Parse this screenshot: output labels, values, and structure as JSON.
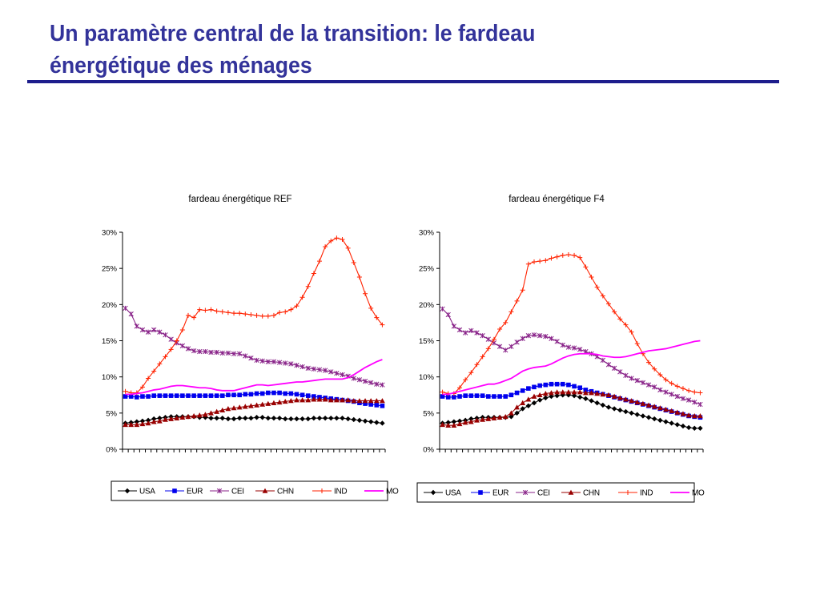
{
  "slide": {
    "title_line1": "Un paramètre central de la transition: le fardeau",
    "title_line2": "énergétique des ménages"
  },
  "chart_data": [
    {
      "type": "line",
      "title": "fardeau énergétique REF",
      "xlabel": "",
      "ylabel": "",
      "ylim": [
        0,
        30
      ],
      "y_ticks": [
        "0%",
        "5%",
        "10%",
        "15%",
        "20%",
        "25%",
        "30%"
      ],
      "x_points": 46,
      "x_tick_labels": "none",
      "legend_position": "bottom",
      "grid": false,
      "series": [
        {
          "name": "USA",
          "color": "#000000",
          "marker": "diamond",
          "values": [
            3.6,
            3.7,
            3.8,
            3.9,
            4.0,
            4.2,
            4.3,
            4.4,
            4.5,
            4.5,
            4.5,
            4.5,
            4.5,
            4.4,
            4.4,
            4.3,
            4.3,
            4.3,
            4.2,
            4.2,
            4.3,
            4.3,
            4.3,
            4.4,
            4.4,
            4.3,
            4.3,
            4.3,
            4.2,
            4.2,
            4.2,
            4.2,
            4.2,
            4.3,
            4.3,
            4.3,
            4.3,
            4.3,
            4.3,
            4.2,
            4.1,
            4.0,
            3.9,
            3.8,
            3.7,
            3.6
          ]
        },
        {
          "name": "EUR",
          "color": "#0000ee",
          "marker": "square",
          "values": [
            7.3,
            7.3,
            7.2,
            7.3,
            7.3,
            7.4,
            7.4,
            7.4,
            7.4,
            7.4,
            7.4,
            7.4,
            7.4,
            7.4,
            7.4,
            7.4,
            7.4,
            7.4,
            7.5,
            7.5,
            7.5,
            7.6,
            7.6,
            7.7,
            7.7,
            7.8,
            7.8,
            7.8,
            7.7,
            7.7,
            7.6,
            7.5,
            7.4,
            7.3,
            7.2,
            7.1,
            7.0,
            6.9,
            6.8,
            6.7,
            6.6,
            6.4,
            6.3,
            6.2,
            6.1,
            6.0
          ]
        },
        {
          "name": "CEI",
          "color": "#882288",
          "marker": "star",
          "values": [
            19.5,
            18.7,
            17.0,
            16.5,
            16.2,
            16.5,
            16.2,
            15.8,
            15.2,
            14.7,
            14.3,
            13.9,
            13.6,
            13.5,
            13.5,
            13.4,
            13.4,
            13.3,
            13.3,
            13.2,
            13.2,
            12.9,
            12.6,
            12.3,
            12.2,
            12.1,
            12.1,
            12.0,
            11.9,
            11.8,
            11.6,
            11.4,
            11.2,
            11.1,
            11.0,
            10.9,
            10.7,
            10.5,
            10.3,
            10.1,
            9.8,
            9.6,
            9.4,
            9.2,
            9.0,
            8.9
          ]
        },
        {
          "name": "CHN",
          "color": "#990000",
          "marker": "triangle",
          "values": [
            3.4,
            3.4,
            3.4,
            3.5,
            3.6,
            3.8,
            3.9,
            4.1,
            4.2,
            4.3,
            4.4,
            4.5,
            4.6,
            4.7,
            4.8,
            5.0,
            5.2,
            5.4,
            5.6,
            5.7,
            5.8,
            5.9,
            6.0,
            6.1,
            6.2,
            6.3,
            6.4,
            6.5,
            6.6,
            6.7,
            6.8,
            6.8,
            6.8,
            6.9,
            6.9,
            6.9,
            6.8,
            6.8,
            6.8,
            6.8,
            6.7,
            6.7,
            6.7,
            6.7,
            6.7,
            6.7
          ]
        },
        {
          "name": "IND",
          "color": "#ff2200",
          "marker": "plus",
          "values": [
            8.0,
            7.8,
            7.8,
            8.6,
            9.8,
            10.8,
            11.8,
            12.8,
            13.8,
            15.0,
            16.5,
            18.5,
            18.2,
            19.3,
            19.2,
            19.3,
            19.1,
            19.0,
            18.9,
            18.8,
            18.8,
            18.7,
            18.6,
            18.5,
            18.4,
            18.4,
            18.5,
            18.9,
            19.0,
            19.3,
            19.8,
            21.0,
            22.5,
            24.3,
            26.0,
            28.0,
            28.8,
            29.2,
            29.0,
            27.8,
            25.8,
            23.8,
            21.5,
            19.5,
            18.2,
            17.2
          ]
        },
        {
          "name": "MO",
          "color": "#ff00ff",
          "marker": "line",
          "values": [
            7.6,
            7.6,
            7.7,
            7.8,
            8.0,
            8.2,
            8.3,
            8.5,
            8.7,
            8.8,
            8.8,
            8.7,
            8.6,
            8.5,
            8.5,
            8.4,
            8.2,
            8.1,
            8.1,
            8.1,
            8.3,
            8.5,
            8.7,
            8.9,
            8.9,
            8.8,
            8.9,
            9.0,
            9.1,
            9.2,
            9.3,
            9.3,
            9.4,
            9.5,
            9.6,
            9.7,
            9.7,
            9.7,
            9.7,
            9.9,
            10.3,
            10.8,
            11.3,
            11.7,
            12.1,
            12.4
          ]
        }
      ]
    },
    {
      "type": "line",
      "title": "fardeau énergétique F4",
      "xlabel": "",
      "ylabel": "",
      "ylim": [
        0,
        30
      ],
      "y_ticks": [
        "0%",
        "5%",
        "10%",
        "15%",
        "20%",
        "25%",
        "30%"
      ],
      "x_points": 46,
      "x_tick_labels": "none",
      "legend_position": "bottom",
      "grid": false,
      "series": [
        {
          "name": "USA",
          "color": "#000000",
          "marker": "diamond",
          "values": [
            3.6,
            3.7,
            3.8,
            3.9,
            4.0,
            4.2,
            4.3,
            4.4,
            4.4,
            4.4,
            4.4,
            4.4,
            4.5,
            5.0,
            5.6,
            6.0,
            6.4,
            6.8,
            7.1,
            7.3,
            7.4,
            7.5,
            7.5,
            7.4,
            7.2,
            7.0,
            6.7,
            6.4,
            6.1,
            5.8,
            5.6,
            5.4,
            5.2,
            5.0,
            4.8,
            4.6,
            4.4,
            4.2,
            4.0,
            3.8,
            3.6,
            3.4,
            3.2,
            3.0,
            2.9,
            2.9
          ]
        },
        {
          "name": "EUR",
          "color": "#0000ee",
          "marker": "square",
          "values": [
            7.3,
            7.2,
            7.2,
            7.3,
            7.4,
            7.4,
            7.4,
            7.4,
            7.3,
            7.3,
            7.3,
            7.3,
            7.5,
            7.8,
            8.1,
            8.4,
            8.6,
            8.8,
            8.9,
            9.0,
            9.0,
            9.0,
            8.9,
            8.7,
            8.5,
            8.2,
            8.0,
            7.8,
            7.6,
            7.4,
            7.2,
            7.0,
            6.8,
            6.6,
            6.4,
            6.2,
            6.0,
            5.8,
            5.6,
            5.4,
            5.2,
            5.0,
            4.8,
            4.6,
            4.5,
            4.4
          ]
        },
        {
          "name": "CEI",
          "color": "#882288",
          "marker": "star",
          "values": [
            19.4,
            18.6,
            17.0,
            16.5,
            16.1,
            16.4,
            16.1,
            15.7,
            15.2,
            14.7,
            14.2,
            13.7,
            14.2,
            14.8,
            15.3,
            15.7,
            15.8,
            15.7,
            15.6,
            15.3,
            14.9,
            14.4,
            14.1,
            14.0,
            13.8,
            13.5,
            13.2,
            12.8,
            12.3,
            11.7,
            11.2,
            10.7,
            10.2,
            9.8,
            9.5,
            9.2,
            8.9,
            8.6,
            8.2,
            7.9,
            7.6,
            7.3,
            7.0,
            6.8,
            6.5,
            6.2
          ]
        },
        {
          "name": "CHN",
          "color": "#990000",
          "marker": "triangle",
          "values": [
            3.4,
            3.3,
            3.3,
            3.5,
            3.7,
            3.8,
            4.0,
            4.1,
            4.2,
            4.3,
            4.4,
            4.5,
            5.0,
            5.8,
            6.4,
            6.9,
            7.3,
            7.5,
            7.7,
            7.8,
            7.9,
            7.9,
            7.9,
            7.9,
            7.9,
            7.8,
            7.8,
            7.7,
            7.6,
            7.5,
            7.3,
            7.1,
            6.9,
            6.7,
            6.5,
            6.3,
            6.1,
            5.9,
            5.7,
            5.5,
            5.3,
            5.1,
            4.9,
            4.7,
            4.6,
            4.6
          ]
        },
        {
          "name": "IND",
          "color": "#ff2200",
          "marker": "plus",
          "values": [
            7.9,
            7.7,
            7.7,
            8.5,
            9.6,
            10.6,
            11.7,
            12.8,
            13.9,
            15.2,
            16.6,
            17.5,
            19.0,
            20.5,
            22.0,
            25.6,
            25.9,
            26.0,
            26.1,
            26.4,
            26.6,
            26.8,
            26.9,
            26.8,
            26.5,
            25.2,
            23.8,
            22.4,
            21.2,
            20.1,
            19.0,
            18.0,
            17.2,
            16.2,
            14.6,
            13.2,
            12.0,
            11.1,
            10.3,
            9.6,
            9.1,
            8.7,
            8.4,
            8.1,
            7.9,
            7.8
          ]
        },
        {
          "name": "MO",
          "color": "#ff00ff",
          "marker": "line",
          "values": [
            7.6,
            7.6,
            7.8,
            8.0,
            8.2,
            8.4,
            8.6,
            8.8,
            9.0,
            9.0,
            9.2,
            9.5,
            9.8,
            10.3,
            10.8,
            11.1,
            11.3,
            11.4,
            11.5,
            11.8,
            12.2,
            12.6,
            12.9,
            13.1,
            13.2,
            13.2,
            13.2,
            13.1,
            12.9,
            12.8,
            12.7,
            12.7,
            12.8,
            13.0,
            13.2,
            13.4,
            13.6,
            13.7,
            13.8,
            13.9,
            14.1,
            14.3,
            14.5,
            14.7,
            14.9,
            15.0
          ]
        }
      ]
    }
  ]
}
